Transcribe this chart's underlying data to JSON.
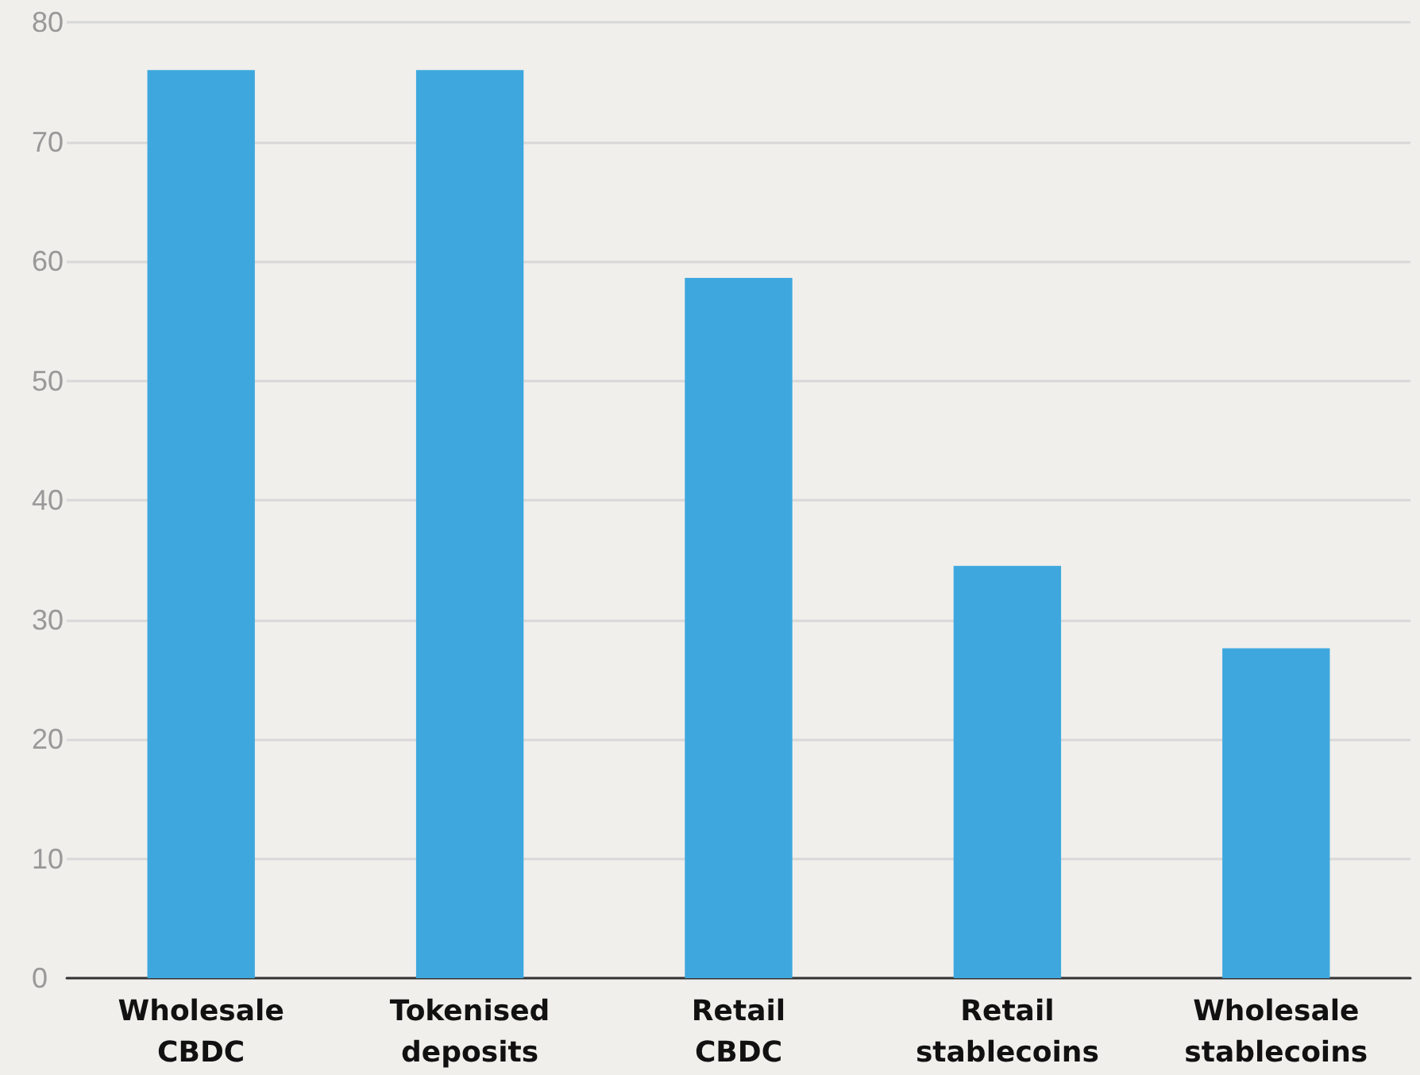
{
  "chart_data": {
    "type": "bar",
    "categories": [
      "Wholesale\nCBDC",
      "Tokenised\ndeposits",
      "Retail\nCBDC",
      "Retail\nstablecoins",
      "Wholesale\nstablecoins"
    ],
    "values": [
      76,
      76,
      58.6,
      34.5,
      27.6
    ],
    "color": "#3ea8de",
    "ylim": [
      0,
      80
    ],
    "yticks": [
      0,
      10,
      20,
      30,
      40,
      50,
      60,
      70,
      80
    ],
    "grid": "y"
  }
}
